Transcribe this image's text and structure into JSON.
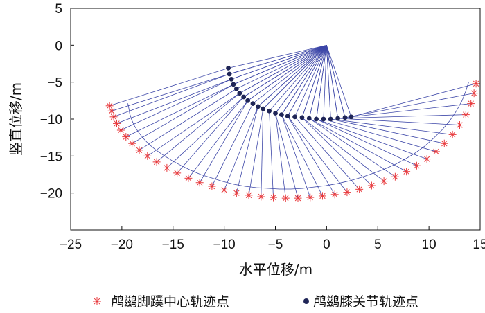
{
  "chart_data": {
    "type": "scatter",
    "xlabel": "水平位移/m",
    "ylabel": "竖直位移/m",
    "xlim": [
      -25,
      15
    ],
    "ylim": [
      -25,
      5
    ],
    "xticks": [
      "−25",
      "−20",
      "−15",
      "−10",
      "−5",
      "0",
      "5",
      "10",
      "15"
    ],
    "yticks": [
      "5",
      "0",
      "−5",
      "−10",
      "−15",
      "−20"
    ],
    "grid": false,
    "legend_position": "bottom",
    "hip_point": [
      0,
      0
    ],
    "series": [
      {
        "name": "鸬鹚脚蹼中心轨迹点",
        "marker": "asterisk",
        "color": "#e8393c",
        "x": [
          -21.2,
          -21.0,
          -20.8,
          -20.5,
          -20.1,
          -19.6,
          -19.0,
          -18.3,
          -17.5,
          -16.6,
          -15.6,
          -14.6,
          -13.5,
          -12.4,
          -11.2,
          -10.0,
          -8.8,
          -7.6,
          -6.4,
          -5.2,
          -4.0,
          -2.8,
          -1.6,
          -0.4,
          0.8,
          2.0,
          3.2,
          4.4,
          5.6,
          6.7,
          7.8,
          8.8,
          9.8,
          10.7,
          11.5,
          12.3,
          13.0,
          13.6,
          14.1,
          14.4,
          14.6
        ],
        "y": [
          -8.2,
          -8.9,
          -9.7,
          -10.6,
          -11.5,
          -12.4,
          -13.3,
          -14.2,
          -15.0,
          -15.8,
          -16.6,
          -17.3,
          -18.0,
          -18.6,
          -19.1,
          -19.6,
          -20.0,
          -20.3,
          -20.5,
          -20.6,
          -20.7,
          -20.7,
          -20.6,
          -20.4,
          -20.2,
          -19.9,
          -19.5,
          -19.0,
          -18.4,
          -17.8,
          -17.1,
          -16.3,
          -15.4,
          -14.4,
          -13.3,
          -12.1,
          -10.8,
          -9.4,
          -7.9,
          -6.5,
          -5.2
        ]
      },
      {
        "name": "鸬鹚膝关节轨迹点",
        "marker": "dot",
        "color": "#1f2557",
        "x": [
          -9.6,
          -9.5,
          -9.3,
          -9.1,
          -8.8,
          -8.5,
          -8.1,
          -7.7,
          -7.2,
          -6.7,
          -6.2,
          -5.6,
          -5.0,
          -4.4,
          -3.8,
          -3.1,
          -2.4,
          -1.7,
          -1.0,
          -0.3,
          0.4,
          1.1,
          1.8,
          2.4
        ],
        "y": [
          -3.1,
          -3.9,
          -4.6,
          -5.3,
          -5.9,
          -6.5,
          -7.0,
          -7.5,
          -7.9,
          -8.3,
          -8.6,
          -8.9,
          -9.2,
          -9.4,
          -9.6,
          -9.7,
          -9.8,
          -9.9,
          -10.0,
          -10.0,
          -10.0,
          -9.9,
          -9.8,
          -9.7
        ]
      }
    ]
  }
}
